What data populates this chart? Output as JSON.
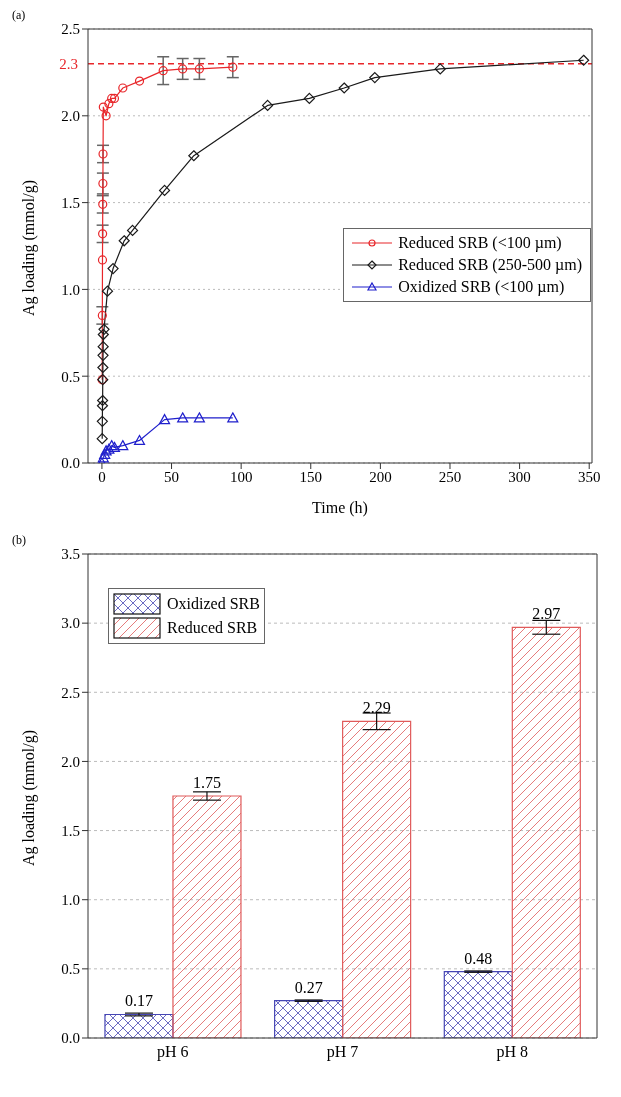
{
  "chart_data": [
    {
      "type": "line",
      "xlabel": "Time (h)",
      "ylabel": "Ag loading (mmol/g)",
      "annotations": [
        "(a)"
      ],
      "xlim": [
        -10,
        352
      ],
      "ylim": [
        0,
        2.5
      ],
      "xticks": [
        0,
        50,
        100,
        150,
        200,
        250,
        300,
        350
      ],
      "yticks": [
        {
          "value": 0,
          "label": "0.0"
        },
        0.5,
        {
          "value": 1,
          "label": "1.0"
        },
        1.5,
        {
          "value": 2,
          "label": "2.0"
        },
        2.5
      ],
      "grid": "y",
      "legend": "right",
      "line_style": "solid",
      "ref_lines": [
        {
          "axis": "y",
          "value": 2.3,
          "label": "2.3",
          "color": "#e8262a",
          "line_style": "dashed"
        }
      ],
      "series": [
        {
          "name": "Reduced SRB (<100 µm)",
          "color": "#e8262a",
          "marker": "circle",
          "x": [
            0.2,
            0.3,
            0.4,
            0.5,
            0.6,
            0.7,
            0.8,
            1,
            3,
            5,
            7,
            9,
            15,
            27,
            44,
            58,
            70,
            94
          ],
          "values": [
            0.48,
            0.85,
            1.17,
            1.32,
            1.49,
            1.61,
            1.78,
            2.05,
            2.0,
            2.07,
            2.1,
            2.1,
            2.16,
            2.2,
            2.26,
            2.27,
            2.27,
            2.28
          ],
          "errors": [
            null,
            0.05,
            null,
            0.05,
            0.05,
            0.06,
            0.05,
            null,
            null,
            null,
            null,
            null,
            null,
            null,
            0.08,
            0.06,
            0.06,
            0.06
          ]
        },
        {
          "name": "Reduced SRB (250-500 µm)",
          "color": "#1a1a1a",
          "marker": "diamond",
          "x": [
            0.2,
            0.3,
            0.4,
            0.5,
            0.6,
            0.7,
            0.8,
            0.9,
            1,
            1.5,
            4,
            8,
            16,
            22,
            45,
            66,
            119,
            149,
            174,
            196,
            243,
            346
          ],
          "values": [
            0.14,
            0.24,
            0.33,
            0.36,
            0.48,
            0.55,
            0.62,
            0.67,
            0.74,
            0.77,
            0.99,
            1.12,
            1.28,
            1.34,
            1.57,
            1.77,
            2.06,
            2.1,
            2.16,
            2.22,
            2.27,
            2.32
          ]
        },
        {
          "name": "Oxidized SRB (<100 µm)",
          "color": "#1f1fcc",
          "marker": "triangle",
          "x": [
            0,
            0.5,
            1,
            2,
            3,
            5,
            7,
            9,
            15,
            27,
            45,
            58,
            70,
            94
          ],
          "values": [
            0,
            null,
            0.03,
            0.05,
            0.07,
            0.08,
            0.1,
            0.09,
            0.1,
            0.13,
            0.25,
            0.26,
            0.26,
            0.26
          ]
        }
      ]
    },
    {
      "type": "bar",
      "ylabel": "Ag loading (mmol/g)",
      "annotations": [
        "(b)"
      ],
      "categories": [
        "pH 6",
        "pH 7",
        "pH 8"
      ],
      "ylim": [
        0,
        3.5
      ],
      "yticks": [
        {
          "value": 0,
          "label": "0.0"
        },
        0.5,
        {
          "value": 1,
          "label": "1.0"
        },
        1.5,
        {
          "value": 2,
          "label": "2.0"
        },
        2.5,
        {
          "value": 3,
          "label": "3.0"
        },
        3.5
      ],
      "grid": "y",
      "legend": "top left",
      "data_labels": true,
      "series": [
        {
          "name": "Oxidized SRB",
          "color": "#4646b4",
          "values": [
            0.17,
            0.27,
            0.48
          ],
          "errors": [
            0.01,
            0.005,
            0.005
          ]
        },
        {
          "name": "Reduced SRB",
          "color": "#e05a5a",
          "values": [
            1.75,
            2.29,
            2.97
          ],
          "errors": [
            0.03,
            0.06,
            0.05
          ]
        }
      ]
    }
  ]
}
